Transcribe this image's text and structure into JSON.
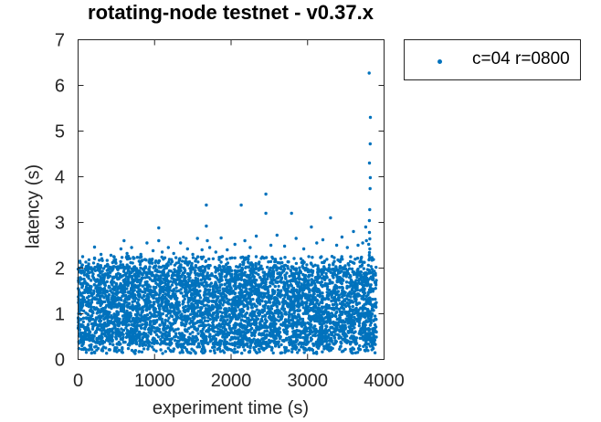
{
  "chart_data": {
    "type": "scatter",
    "title": "rotating-node testnet - v0.37.x",
    "xlabel": "experiment time (s)",
    "ylabel": "latency (s)",
    "xlim": [
      0,
      4000
    ],
    "ylim": [
      0,
      7
    ],
    "xticks": [
      0,
      1000,
      2000,
      3000,
      4000
    ],
    "yticks": [
      0,
      1,
      2,
      3,
      4,
      5,
      6,
      7
    ],
    "grid": false,
    "axis_color": "#262626",
    "legend": {
      "position": "outside-top-right",
      "entries": [
        {
          "label": "c=04 r=0800",
          "marker": "dot",
          "color": "#0072BD"
        }
      ]
    },
    "seed": 7,
    "series": [
      {
        "name": "c=04 r=0800",
        "color": "#0072BD",
        "marker": "point",
        "marker_radius_px": 1.7,
        "dense_band": {
          "description": "near-solid cloud of per-request latencies",
          "x_min": 0,
          "x_max": 3900,
          "y_min": 0.33,
          "y_max": 2.04,
          "n_points": 4800
        },
        "bottom_fringe": {
          "x_min": 0,
          "x_max": 3900,
          "y_min": 0.13,
          "y_max": 0.35,
          "n_points": 300
        },
        "top_fringe": {
          "x_min": 0,
          "x_max": 3900,
          "y_min": 2.04,
          "y_max": 2.26,
          "n_points": 230
        },
        "outliers": [
          [
            60,
            2.25
          ],
          [
            215,
            2.46
          ],
          [
            215,
            2.22
          ],
          [
            300,
            2.3
          ],
          [
            430,
            2.28
          ],
          [
            560,
            2.42
          ],
          [
            600,
            2.6
          ],
          [
            640,
            2.32
          ],
          [
            700,
            2.45
          ],
          [
            820,
            2.3
          ],
          [
            900,
            2.55
          ],
          [
            980,
            2.38
          ],
          [
            1054,
            2.88
          ],
          [
            1054,
            2.6
          ],
          [
            1100,
            2.35
          ],
          [
            1180,
            2.45
          ],
          [
            1250,
            2.32
          ],
          [
            1340,
            2.55
          ],
          [
            1430,
            2.42
          ],
          [
            1500,
            2.3
          ],
          [
            1560,
            2.65
          ],
          [
            1620,
            2.4
          ],
          [
            1677,
            3.38
          ],
          [
            1677,
            2.92
          ],
          [
            1690,
            2.6
          ],
          [
            1720,
            2.45
          ],
          [
            1800,
            2.35
          ],
          [
            1870,
            2.66
          ],
          [
            1950,
            2.4
          ],
          [
            2050,
            2.52
          ],
          [
            2133,
            3.38
          ],
          [
            2180,
            2.6
          ],
          [
            2250,
            2.45
          ],
          [
            2330,
            2.7
          ],
          [
            2455,
            3.62
          ],
          [
            2455,
            3.2
          ],
          [
            2520,
            2.5
          ],
          [
            2600,
            2.72
          ],
          [
            2700,
            2.48
          ],
          [
            2790,
            3.2
          ],
          [
            2850,
            2.65
          ],
          [
            2950,
            2.42
          ],
          [
            3050,
            2.9
          ],
          [
            3120,
            2.55
          ],
          [
            3200,
            2.62
          ],
          [
            3300,
            3.1
          ],
          [
            3380,
            2.5
          ],
          [
            3450,
            2.68
          ],
          [
            3520,
            2.45
          ],
          [
            3600,
            2.8
          ],
          [
            3660,
            2.5
          ],
          [
            3720,
            2.55
          ],
          [
            3760,
            2.9
          ],
          [
            3770,
            2.6
          ]
        ],
        "spike": {
          "x": 3810,
          "x_jitter": 12,
          "values": [
            6.27,
            5.3,
            4.72,
            4.3,
            3.98,
            3.74,
            3.28,
            3.04,
            2.78,
            2.64,
            2.52,
            2.42,
            2.34,
            2.28,
            2.22
          ]
        }
      }
    ]
  }
}
